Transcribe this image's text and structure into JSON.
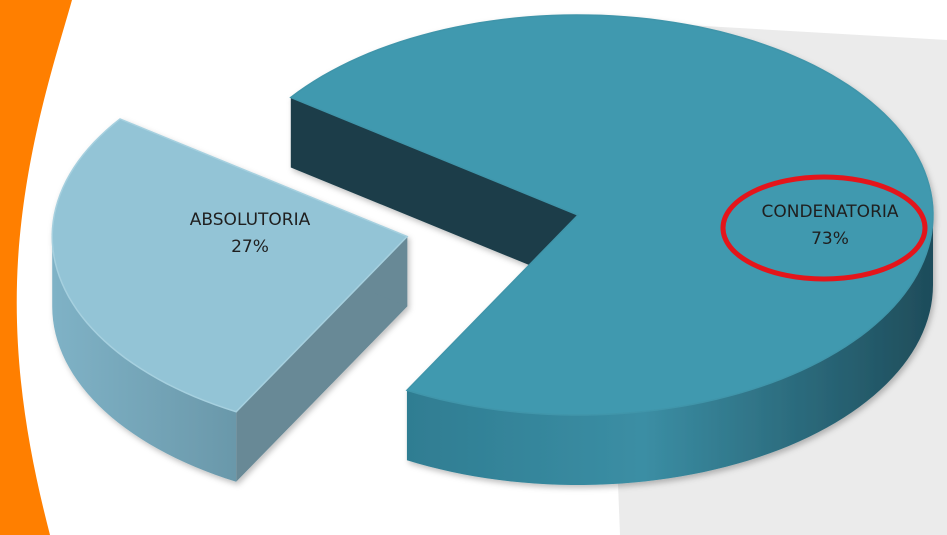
{
  "chart_data": {
    "type": "pie",
    "title": "",
    "slices": [
      {
        "category": "CONDENATORIA",
        "percent_label": "73%",
        "value": 73,
        "color": "#4199AF",
        "highlighted": true
      },
      {
        "category": "ABSOLUTORIA",
        "percent_label": "27%",
        "value": 27,
        "color": "#93C4D6",
        "exploded": true
      }
    ],
    "legend": "none",
    "style": "3D exploded"
  },
  "colors": {
    "accent_orange": "#FF7F00",
    "highlight_ellipse": "#E4151B",
    "background_swoosh": "#D9D9D9"
  }
}
